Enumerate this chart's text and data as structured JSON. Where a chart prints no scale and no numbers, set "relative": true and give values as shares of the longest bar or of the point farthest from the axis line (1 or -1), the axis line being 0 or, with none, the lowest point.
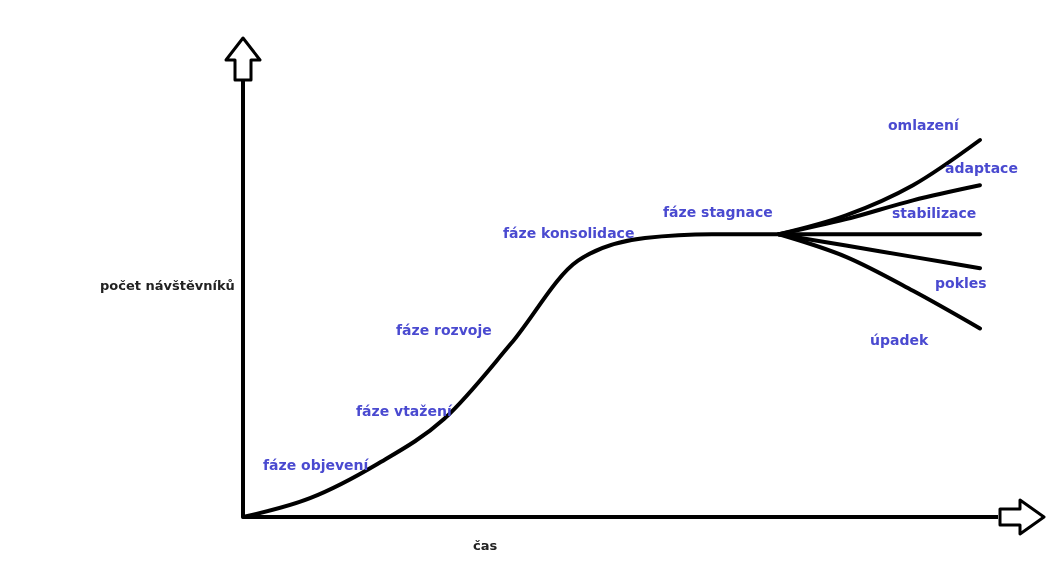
{
  "chart_data": {
    "type": "line",
    "relative": true,
    "xlabel": "čas",
    "ylabel": "počet návštěvníků",
    "categories": [
      null,
      null,
      null,
      null,
      null,
      null,
      null,
      null,
      null,
      null,
      null,
      null
    ],
    "series": [
      {
        "color": "#000000",
        "values": [
          0,
          0.05,
          0.14,
          0.26,
          0.46,
          0.68,
          0.74,
          0.75,
          0.75,
          null,
          null,
          null
        ]
      },
      {
        "name": "omlazení",
        "color": "#000000",
        "values": [
          null,
          null,
          null,
          null,
          null,
          null,
          null,
          null,
          0.75,
          0.8,
          0.88,
          1.0
        ]
      },
      {
        "name": "adaptace",
        "color": "#000000",
        "values": [
          null,
          null,
          null,
          null,
          null,
          null,
          null,
          null,
          0.75,
          0.79,
          0.84,
          0.88
        ]
      },
      {
        "name": "stabilizace",
        "color": "#000000",
        "values": [
          null,
          null,
          null,
          null,
          null,
          null,
          null,
          null,
          0.75,
          0.75,
          0.75,
          0.75
        ]
      },
      {
        "name": "pokles",
        "color": "#000000",
        "values": [
          null,
          null,
          null,
          null,
          null,
          null,
          null,
          null,
          0.75,
          0.72,
          0.69,
          0.66
        ]
      },
      {
        "name": "úpadek",
        "color": "#000000",
        "values": [
          null,
          null,
          null,
          null,
          null,
          null,
          null,
          null,
          0.75,
          0.69,
          0.6,
          0.5
        ]
      }
    ],
    "annotations": [
      "fáze objevení",
      "fáze vtažení",
      "fáze rozvoje",
      "fáze konsolidace",
      "fáze stagnace"
    ],
    "marker": "none",
    "line_style": "solid"
  }
}
